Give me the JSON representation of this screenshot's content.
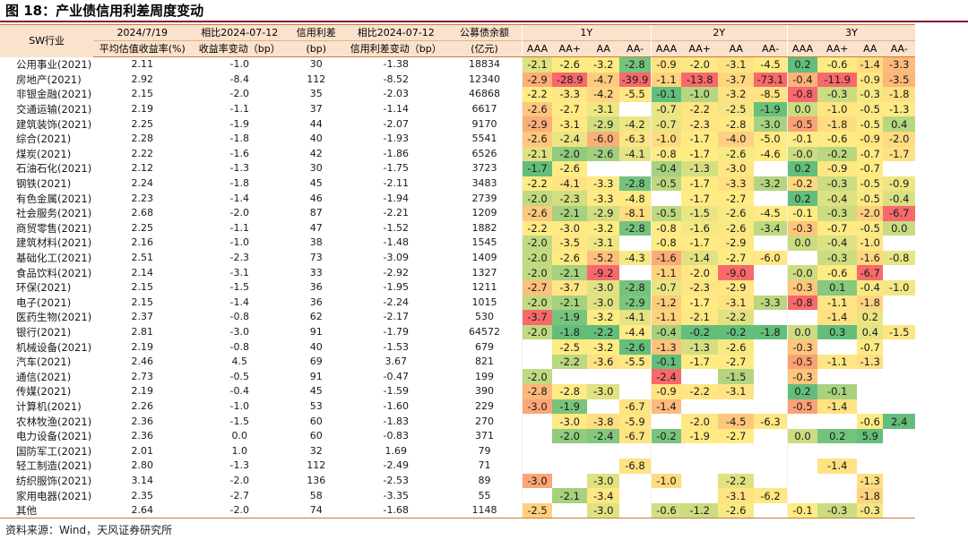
{
  "title": "图 18：产业债信用利差周度变动",
  "source": "资料来源：Wind，天风证券研究所",
  "header": {
    "industry": "SW行业",
    "yield_top": "2024/7/19",
    "yield_bottom": "平均估值收益率(%)",
    "yield_chg_top": "相比2024-07-12",
    "yield_chg_bottom": "收益率变动（bp）",
    "spread_top": "信用利差",
    "spread_bottom": "(bp)",
    "spread_chg_top": "相比2024-07-12",
    "spread_chg_bottom": "信用利差变动（bp）",
    "balance_top": "公募债余额",
    "balance_bottom": "(亿元)",
    "groups": [
      "1Y",
      "2Y",
      "3Y"
    ],
    "ratings": [
      "AAA",
      "AA+",
      "AA",
      "AA-",
      "AAA",
      "AA+",
      "AA",
      "AA-",
      "AAA",
      "AA+",
      "AA",
      "AA-"
    ]
  },
  "rows": [
    {
      "name": "公用事业(2021)",
      "yield": "2.11",
      "ychg": "-1.0",
      "spread": "30",
      "schg": "-1.38",
      "bal": "18834",
      "v": [
        "-2.1",
        "-2.6",
        "-3.2",
        "-2.8",
        "-0.9",
        "-2.0",
        "-3.1",
        "-4.5",
        "0.2",
        "-0.6",
        "-1.4",
        "-3.3"
      ]
    },
    {
      "name": "房地产(2021)",
      "yield": "2.92",
      "ychg": "-8.4",
      "spread": "112",
      "schg": "-8.52",
      "bal": "12340",
      "v": [
        "-2.9",
        "-28.9",
        "-4.7",
        "-39.9",
        "-1.1",
        "-13.8",
        "-3.7",
        "-73.1",
        "-0.4",
        "-11.9",
        "-0.9",
        "-3.5"
      ]
    },
    {
      "name": "非银金融(2021)",
      "yield": "2.15",
      "ychg": "-2.0",
      "spread": "35",
      "schg": "-2.03",
      "bal": "46868",
      "v": [
        "-2.2",
        "-3.3",
        "-4.2",
        "-5.5",
        "-0.1",
        "-1.0",
        "-3.2",
        "-8.5",
        "-0.8",
        "-0.3",
        "-0.3",
        "-1.8"
      ]
    },
    {
      "name": "交通运输(2021)",
      "yield": "2.19",
      "ychg": "-1.1",
      "spread": "37",
      "schg": "-1.14",
      "bal": "6617",
      "v": [
        "-2.6",
        "-2.7",
        "-3.1",
        "",
        "-0.7",
        "-2.2",
        "-2.5",
        "-1.9",
        "0.0",
        "-1.0",
        "-0.5",
        "-1.3"
      ]
    },
    {
      "name": "建筑装饰(2021)",
      "yield": "2.25",
      "ychg": "-1.9",
      "spread": "44",
      "schg": "-2.07",
      "bal": "9170",
      "v": [
        "-2.9",
        "-3.1",
        "-2.9",
        "-4.2",
        "-0.7",
        "-2.3",
        "-2.8",
        "-3.0",
        "-0.5",
        "-1.8",
        "-0.5",
        "0.4"
      ]
    },
    {
      "name": "综合(2021)",
      "yield": "2.28",
      "ychg": "-1.8",
      "spread": "40",
      "schg": "-1.93",
      "bal": "5541",
      "v": [
        "-2.6",
        "-2.4",
        "-6.0",
        "-6.3",
        "-1.0",
        "-1.7",
        "-4.0",
        "-5.0",
        "-0.1",
        "-0.6",
        "-0.9",
        "-2.0"
      ]
    },
    {
      "name": "煤炭(2021)",
      "yield": "2.22",
      "ychg": "-1.6",
      "spread": "42",
      "schg": "-1.86",
      "bal": "6526",
      "v": [
        "-2.1",
        "-2.0",
        "-2.6",
        "-4.1",
        "-0.8",
        "-1.7",
        "-2.6",
        "-4.6",
        "-0.0",
        "-0.2",
        "-0.7",
        "-1.7"
      ]
    },
    {
      "name": "石油石化(2021)",
      "yield": "2.12",
      "ychg": "-1.3",
      "spread": "30",
      "schg": "-1.75",
      "bal": "3723",
      "v": [
        "-1.7",
        "-2.6",
        "",
        "",
        "-0.4",
        "-1.3",
        "-3.0",
        "",
        "0.2",
        "-0.9",
        "-0.7",
        ""
      ]
    },
    {
      "name": "钢铁(2021)",
      "yield": "2.24",
      "ychg": "-1.8",
      "spread": "45",
      "schg": "-2.11",
      "bal": "3483",
      "v": [
        "-2.2",
        "-4.1",
        "-3.3",
        "-2.8",
        "-0.5",
        "-1.7",
        "-3.3",
        "-3.2",
        "-0.2",
        "-0.3",
        "-0.5",
        "-0.9"
      ]
    },
    {
      "name": "有色金属(2021)",
      "yield": "2.23",
      "ychg": "-1.4",
      "spread": "46",
      "schg": "-1.94",
      "bal": "2739",
      "v": [
        "-2.0",
        "-2.3",
        "-3.3",
        "-4.8",
        "",
        "-1.7",
        "-2.7",
        "",
        "0.2",
        "-0.4",
        "-0.5",
        "-0.4"
      ]
    },
    {
      "name": "社会服务(2021)",
      "yield": "2.68",
      "ychg": "-2.0",
      "spread": "87",
      "schg": "-2.21",
      "bal": "1209",
      "v": [
        "-2.6",
        "-2.1",
        "-2.9",
        "-8.1",
        "-0.5",
        "-1.5",
        "-2.6",
        "-4.5",
        "-0.1",
        "-0.3",
        "-2.0",
        "-6.7"
      ]
    },
    {
      "name": "商贸零售(2021)",
      "yield": "2.25",
      "ychg": "-1.1",
      "spread": "47",
      "schg": "-1.52",
      "bal": "1882",
      "v": [
        "-2.2",
        "-3.0",
        "-3.2",
        "-2.8",
        "-0.8",
        "-1.6",
        "-2.6",
        "-3.4",
        "-0.3",
        "-0.7",
        "-0.5",
        "0.0"
      ]
    },
    {
      "name": "建筑材料(2021)",
      "yield": "2.16",
      "ychg": "-1.0",
      "spread": "38",
      "schg": "-1.48",
      "bal": "1545",
      "v": [
        "-2.0",
        "-3.5",
        "-3.1",
        "",
        "-0.8",
        "-1.7",
        "-2.9",
        "",
        "0.0",
        "-0.4",
        "-1.0",
        ""
      ]
    },
    {
      "name": "基础化工(2021)",
      "yield": "2.51",
      "ychg": "-2.3",
      "spread": "73",
      "schg": "-3.09",
      "bal": "1409",
      "v": [
        "-2.0",
        "-2.6",
        "-5.2",
        "-4.3",
        "-1.6",
        "-1.4",
        "-2.7",
        "-6.0",
        "",
        "-0.3",
        "-1.6",
        "-0.8"
      ]
    },
    {
      "name": "食品饮料(2021)",
      "yield": "2.14",
      "ychg": "-3.1",
      "spread": "33",
      "schg": "-2.92",
      "bal": "1327",
      "v": [
        "-2.0",
        "-2.1",
        "-9.2",
        "",
        "-1.1",
        "-2.0",
        "-9.0",
        "",
        "-0.0",
        "-0.6",
        "-6.7",
        ""
      ]
    },
    {
      "name": "环保(2021)",
      "yield": "2.15",
      "ychg": "-1.5",
      "spread": "36",
      "schg": "-1.95",
      "bal": "1211",
      "v": [
        "-2.7",
        "-3.7",
        "-3.0",
        "-2.8",
        "-0.7",
        "-2.3",
        "-2.9",
        "",
        "-0.3",
        "0.1",
        "-0.4",
        "-1.0"
      ]
    },
    {
      "name": "电子(2021)",
      "yield": "2.15",
      "ychg": "-1.4",
      "spread": "36",
      "schg": "-2.24",
      "bal": "1015",
      "v": [
        "-2.0",
        "-2.1",
        "-3.0",
        "-2.9",
        "-1.2",
        "-1.7",
        "-3.1",
        "-3.3",
        "-0.8",
        "-1.1",
        "-1.8",
        ""
      ]
    },
    {
      "name": "医药生物(2021)",
      "yield": "2.37",
      "ychg": "-0.8",
      "spread": "62",
      "schg": "-2.17",
      "bal": "530",
      "v": [
        "-3.7",
        "-1.9",
        "-3.2",
        "-4.1",
        "-1.1",
        "-2.1",
        "-2.2",
        "",
        "",
        "-1.4",
        "0.2",
        ""
      ]
    },
    {
      "name": "银行(2021)",
      "yield": "2.81",
      "ychg": "-3.0",
      "spread": "91",
      "schg": "-1.79",
      "bal": "64572",
      "v": [
        "-2.0",
        "-1.8",
        "-2.2",
        "-4.4",
        "-0.4",
        "-0.2",
        "-0.2",
        "-1.8",
        "0.0",
        "0.3",
        "0.4",
        "-1.5"
      ]
    },
    {
      "name": "机械设备(2021)",
      "yield": "2.19",
      "ychg": "-0.8",
      "spread": "40",
      "schg": "-1.53",
      "bal": "679",
      "v": [
        "",
        "-2.5",
        "-3.2",
        "-2.6",
        "-1.3",
        "-1.3",
        "-2.6",
        "",
        "-0.3",
        "",
        "-0.7",
        ""
      ]
    },
    {
      "name": "汽车(2021)",
      "yield": "2.46",
      "ychg": "4.5",
      "spread": "69",
      "schg": "3.67",
      "bal": "821",
      "v": [
        "",
        "-2.2",
        "-3.6",
        "-5.5",
        "-0.1",
        "-1.7",
        "-2.7",
        "",
        "-0.5",
        "-1.1",
        "-1.3",
        ""
      ]
    },
    {
      "name": "通信(2021)",
      "yield": "2.73",
      "ychg": "-0.5",
      "spread": "91",
      "schg": "-0.47",
      "bal": "199",
      "v": [
        "-2.0",
        "",
        "",
        "",
        "-2.4",
        "",
        "-1.5",
        "",
        "-0.3",
        "",
        "",
        ""
      ]
    },
    {
      "name": "传媒(2021)",
      "yield": "2.19",
      "ychg": "-0.4",
      "spread": "45",
      "schg": "-1.59",
      "bal": "390",
      "v": [
        "-2.8",
        "-2.8",
        "-3.0",
        "",
        "-0.9",
        "-2.2",
        "-3.1",
        "",
        "0.2",
        "-0.1",
        "",
        ""
      ]
    },
    {
      "name": "计算机(2021)",
      "yield": "2.26",
      "ychg": "-1.0",
      "spread": "53",
      "schg": "-1.60",
      "bal": "229",
      "v": [
        "-3.0",
        "-1.9",
        "",
        "-6.7",
        "-1.4",
        "",
        "",
        "",
        "-0.5",
        "-1.4",
        "",
        ""
      ]
    },
    {
      "name": "农林牧渔(2021)",
      "yield": "2.36",
      "ychg": "-1.5",
      "spread": "60",
      "schg": "-1.83",
      "bal": "270",
      "v": [
        "",
        "-3.0",
        "-3.8",
        "-5.9",
        "",
        "-2.0",
        "-4.5",
        "-6.3",
        "",
        "",
        "-0.6",
        "2.4"
      ]
    },
    {
      "name": "电力设备(2021)",
      "yield": "2.36",
      "ychg": "0.0",
      "spread": "60",
      "schg": "-0.83",
      "bal": "371",
      "v": [
        "",
        "-2.0",
        "-2.4",
        "-6.7",
        "-0.2",
        "-1.9",
        "-2.7",
        "",
        "0.0",
        "0.2",
        "5.9",
        ""
      ]
    },
    {
      "name": "国防军工(2021)",
      "yield": "2.01",
      "ychg": "1.0",
      "spread": "32",
      "schg": "1.69",
      "bal": "79",
      "v": [
        "",
        "",
        "",
        "",
        "",
        "",
        "",
        "",
        "",
        "",
        "",
        ""
      ]
    },
    {
      "name": "轻工制造(2021)",
      "yield": "2.80",
      "ychg": "-1.3",
      "spread": "112",
      "schg": "-2.49",
      "bal": "71",
      "v": [
        "",
        "",
        "",
        "-6.8",
        "",
        "",
        "",
        "",
        "",
        "-1.4",
        "",
        ""
      ]
    },
    {
      "name": "纺织服饰(2021)",
      "yield": "3.14",
      "ychg": "-2.0",
      "spread": "136",
      "schg": "-2.53",
      "bal": "89",
      "v": [
        "-3.0",
        "",
        "-3.0",
        "",
        "-1.0",
        "",
        "-2.2",
        "",
        "",
        "",
        "-1.3",
        ""
      ]
    },
    {
      "name": "家用电器(2021)",
      "yield": "2.35",
      "ychg": "-2.7",
      "spread": "58",
      "schg": "-3.35",
      "bal": "55",
      "v": [
        "",
        "-2.1",
        "-3.4",
        "",
        "",
        "",
        "-3.1",
        "-6.2",
        "",
        "",
        "-1.8",
        ""
      ]
    },
    {
      "name": "其他",
      "yield": "2.64",
      "ychg": "-2.0",
      "spread": "74",
      "schg": "-1.68",
      "bal": "1148",
      "v": [
        "-2.5",
        "",
        "-3.0",
        "",
        "-0.6",
        "-1.2",
        "-2.6",
        "",
        "-0.1",
        "-0.3",
        "-0.3",
        ""
      ]
    }
  ],
  "colors": {
    "header_bg": "#fbe2cd",
    "title_rule": "#8a1538",
    "scale_high": "#f8696b",
    "scale_mid": "#ffeb84",
    "scale_low": "#63be7b"
  }
}
